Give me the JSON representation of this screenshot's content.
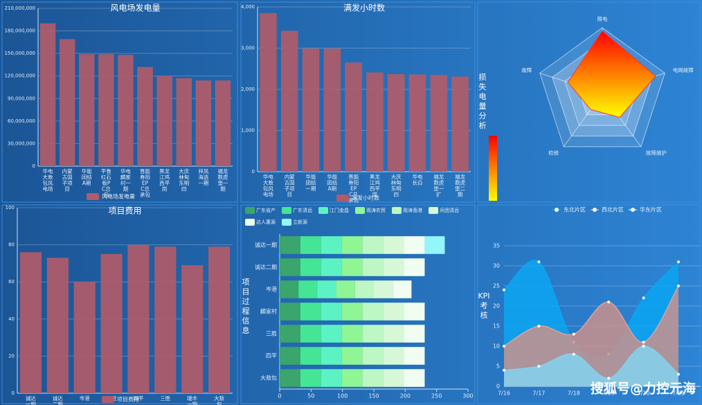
{
  "chart_data": [
    {
      "type": "bar",
      "title": "风电场发电量",
      "categories": [
        "华电大敖包风电场",
        "内蒙古国子项目",
        "华能团结A期",
        "平鲁红石板PC总包",
        "华电麟家村一期",
        "晋能寿阳EPC总承包",
        "黑龙江鸡西平岗",
        "大庆林甸东明四",
        "祥风海选一期",
        "福龙数虎堡一期"
      ],
      "series": [
        {
          "name": "风电场发电量",
          "color": "#b05b69",
          "values": [
            190000000,
            169000000,
            149000000,
            149000000,
            148000000,
            132000000,
            120000000,
            117000000,
            114000000,
            114000000
          ]
        }
      ],
      "ylim": [
        0,
        210000000
      ],
      "yticks": [
        0,
        {
          "value": 30000000,
          "label": "30,000,000"
        },
        {
          "value": 60000000,
          "label": "60,000,000"
        },
        {
          "value": 90000000,
          "label": "90,000,000"
        },
        {
          "value": 120000000,
          "label": "120,000,000"
        },
        {
          "value": 150000000,
          "label": "150,000,000"
        },
        {
          "value": 180000000,
          "label": "180,000,000"
        },
        {
          "value": 210000000,
          "label": "210,000,000"
        }
      ],
      "grid": true
    },
    {
      "type": "bar",
      "title": "满发小时数",
      "categories": [
        "华电大敖包风电场",
        "内蒙古国子项目",
        "华能团结一期",
        "华能团结A期",
        "晋能寿阳EPC总承包",
        "黑龙江鸡西平岗",
        "大庆林甸东明四",
        "华电长白",
        "福龙数虎堡一扩",
        "福龙数虎堡二期"
      ],
      "series": [
        {
          "name": "满发小时数",
          "color": "#b05b69",
          "values": [
            3850,
            3420,
            2990,
            2990,
            2650,
            2410,
            2370,
            2360,
            2350,
            2310
          ]
        }
      ],
      "ylim": [
        0,
        4000
      ],
      "yticks": [
        0,
        {
          "value": 1000,
          "label": "1,000"
        },
        {
          "value": 2000,
          "label": "2,000"
        },
        {
          "value": 3000,
          "label": "3,000"
        },
        {
          "value": 4000,
          "label": "4,000"
        }
      ],
      "grid": true
    },
    {
      "type": "radar",
      "title": "损失电量分析",
      "indicators": [
        {
          "name": "限电",
          "max": 100
        },
        {
          "name": "电网故障",
          "max": 100
        },
        {
          "name": "故障维护",
          "max": 100
        },
        {
          "name": "检修",
          "max": 100
        },
        {
          "name": "故障",
          "max": 100
        }
      ],
      "values": [
        95,
        85,
        45,
        30,
        55
      ],
      "colors": [
        "#ff0000",
        "#ffff00"
      ]
    },
    {
      "type": "bar",
      "title": "项目费用",
      "categories": [
        "诚达一期",
        "诚达二期",
        "岑港",
        "仁胜",
        "四平",
        "三胜",
        "瑞丰一期",
        "大敖包"
      ],
      "series": [
        {
          "name": "项目费用",
          "color": "#b05b69",
          "values": [
            76,
            73,
            60,
            75,
            80,
            79,
            69,
            79
          ]
        }
      ],
      "ylim": [
        0,
        100
      ],
      "yticks": [
        0,
        20,
        40,
        60,
        80,
        100
      ],
      "grid": true
    },
    {
      "type": "hbar_stack",
      "title": "项目过程信息",
      "categories": [
        "诚达一期",
        "诚达二期",
        "岑港",
        "麟家村",
        "三胜",
        "四平",
        "大敖包"
      ],
      "series": [
        {
          "name": "广东省产",
          "color": "#3aa56c",
          "values": [
            33,
            33,
            30,
            33,
            33,
            33,
            33
          ]
        },
        {
          "name": "广东清远",
          "color": "#45e596",
          "values": [
            33,
            33,
            30,
            33,
            33,
            33,
            33
          ]
        },
        {
          "name": "江门金昌",
          "color": "#5df2c4",
          "values": [
            33,
            33,
            30,
            33,
            33,
            33,
            33
          ]
        },
        {
          "name": "观涛农贸",
          "color": "#8ff595",
          "values": [
            33,
            33,
            30,
            33,
            33,
            33,
            33
          ]
        },
        {
          "name": "观涛渔港",
          "color": "#bdf7c3",
          "values": [
            33,
            33,
            30,
            33,
            33,
            33,
            33
          ]
        },
        {
          "name": "兵团清远",
          "color": "#d6f8d6",
          "values": [
            33,
            33,
            30,
            33,
            33,
            33,
            33
          ]
        },
        {
          "name": "达人惠源",
          "color": "#f0fdf0",
          "values": [
            33,
            33,
            30,
            33,
            33,
            33,
            33
          ]
        },
        {
          "name": "立新源",
          "color": "#93f6fb",
          "values": [
            32,
            null,
            null,
            null,
            null,
            null,
            null
          ]
        }
      ],
      "xlim": [
        0,
        300
      ],
      "xticks": [
        0,
        50,
        100,
        150,
        200,
        250,
        300
      ]
    },
    {
      "type": "line",
      "title": "KPI考核",
      "categories": [
        "7/16",
        "7/17",
        "7/18",
        "7/19",
        "7/20",
        "7/21"
      ],
      "series": [
        {
          "name": "东北片区",
          "color": "#0aa6f2",
          "values": [
            24,
            31,
            11,
            8,
            22,
            31
          ]
        },
        {
          "name": "西北片区",
          "color": "#c9918c",
          "values": [
            10,
            15,
            13,
            21,
            11,
            25
          ]
        },
        {
          "name": "华东片区",
          "color": "#84d2ee",
          "values": [
            4,
            5,
            8,
            2,
            10,
            3
          ]
        }
      ],
      "ylim": [
        0,
        35
      ],
      "yticks": [
        0,
        5,
        10,
        15,
        20,
        25,
        30,
        35
      ],
      "grid": true
    }
  ],
  "watermark": "搜狐号@力控元海"
}
